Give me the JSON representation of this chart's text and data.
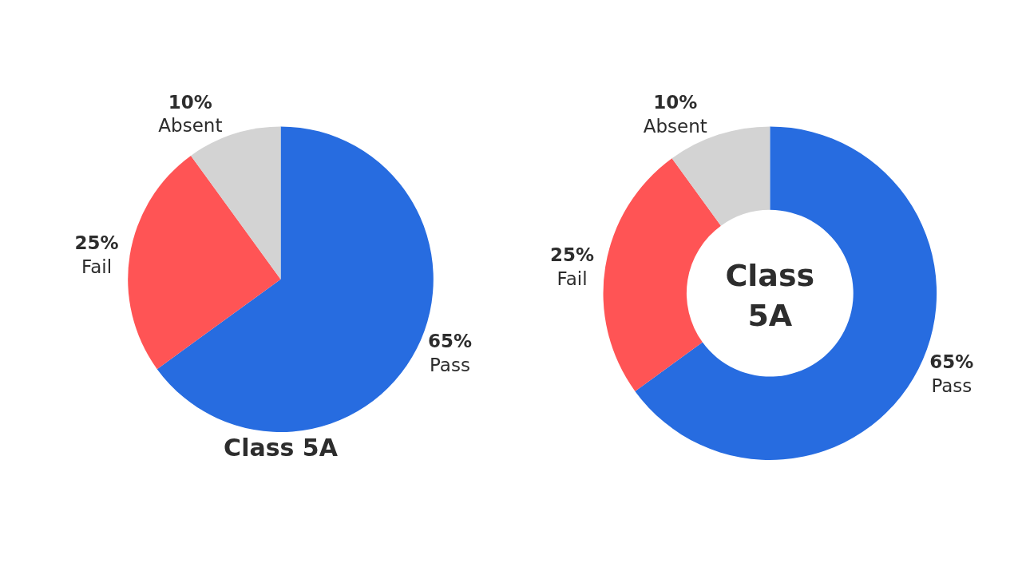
{
  "chart_data": [
    {
      "type": "pie",
      "title": "Class 5A",
      "categories": [
        "Pass",
        "Fail",
        "Absent"
      ],
      "values": [
        65,
        25,
        10
      ],
      "value_labels": [
        "65%",
        "25%",
        "10%"
      ],
      "colors": [
        "#276ce0",
        "#ff5455",
        "#d3d3d3"
      ],
      "legend": false
    },
    {
      "type": "donut",
      "title": "Class 5A",
      "categories": [
        "Pass",
        "Fail",
        "Absent"
      ],
      "values": [
        65,
        25,
        10
      ],
      "value_labels": [
        "65%",
        "25%",
        "10%"
      ],
      "colors": [
        "#276ce0",
        "#ff5455",
        "#d3d3d3"
      ],
      "legend": false
    }
  ]
}
